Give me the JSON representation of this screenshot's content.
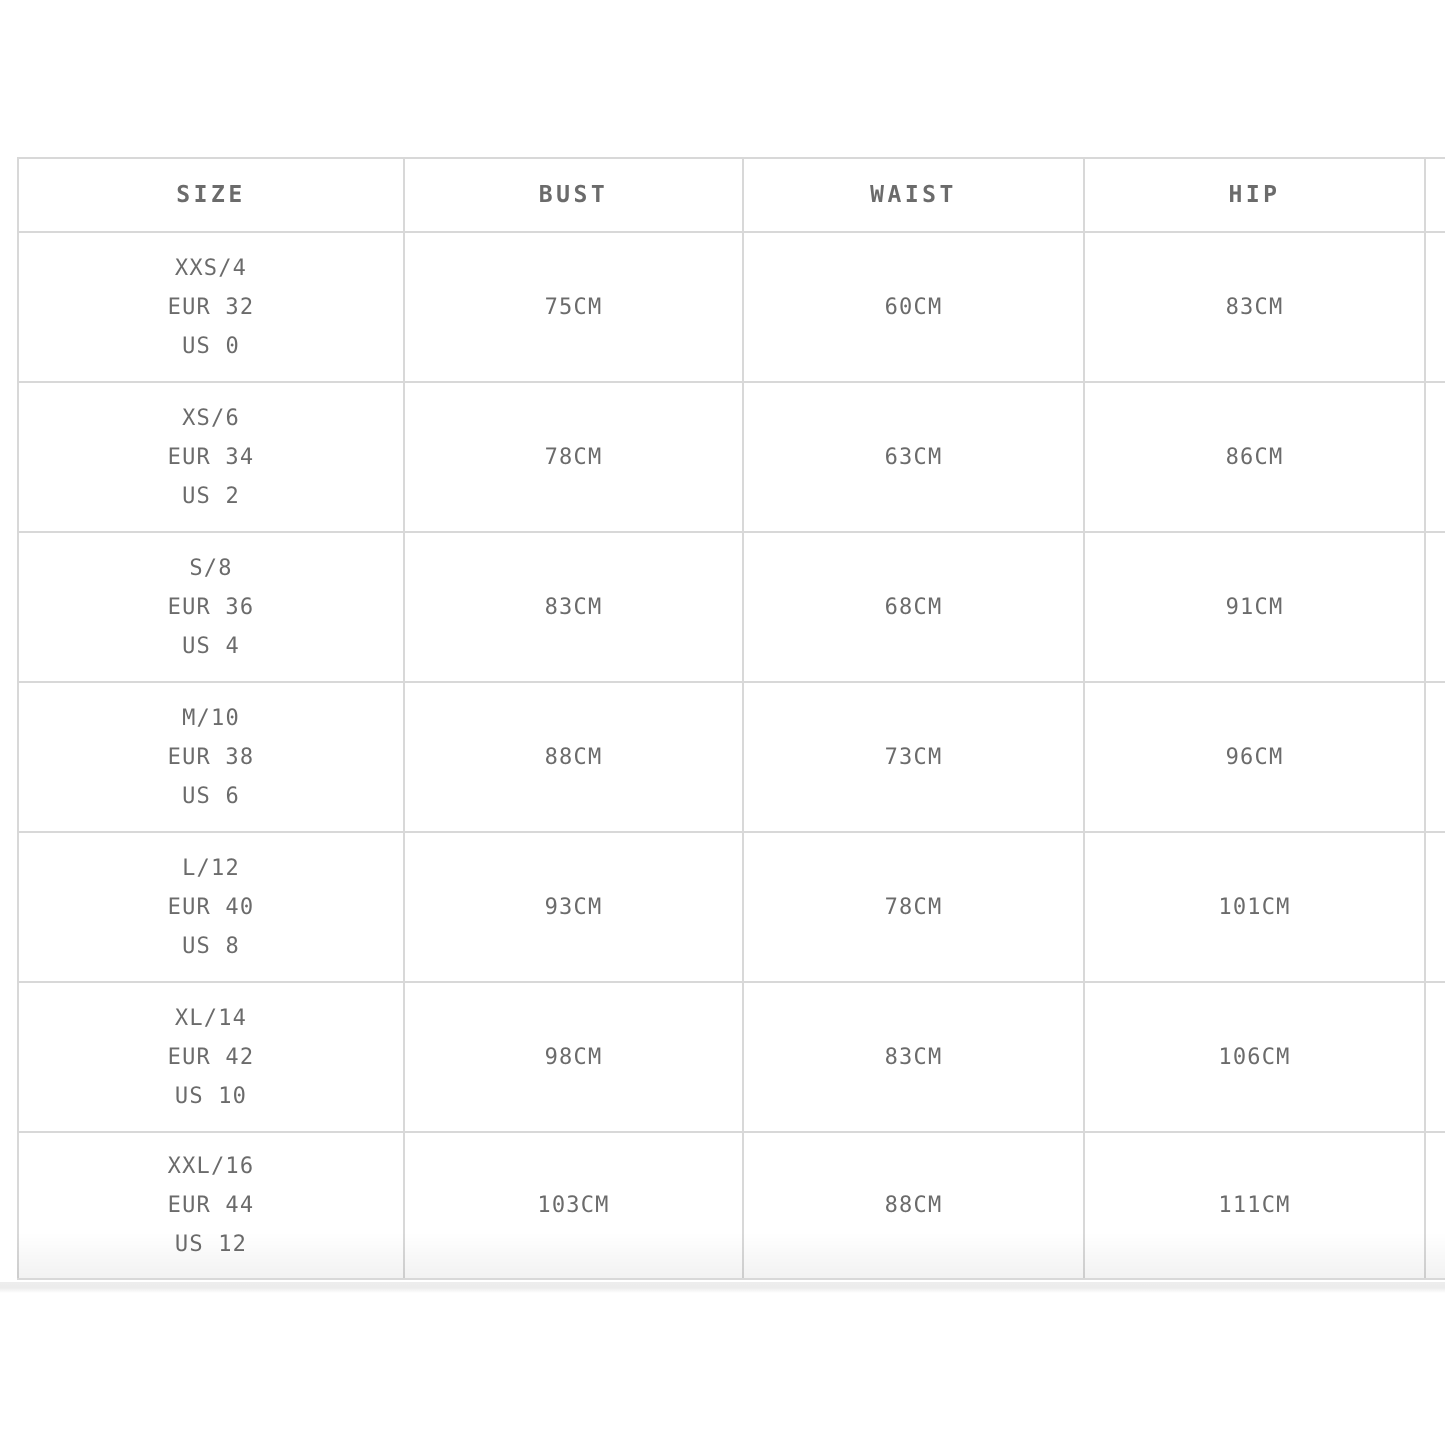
{
  "colors": {
    "text": "#6b6b6b",
    "border": "#d8d8d8",
    "divider": "#ececec"
  },
  "table": {
    "columns": [
      {
        "label": "SIZE"
      },
      {
        "label": "BUST"
      },
      {
        "label": "WAIST"
      },
      {
        "label": "HIP"
      }
    ],
    "rows": [
      {
        "size_lines": [
          "XXS/4",
          "EUR 32",
          "US 0"
        ],
        "bust": "75CM",
        "waist": "60CM",
        "hip": "83CM"
      },
      {
        "size_lines": [
          "XS/6",
          "EUR 34",
          "US 2"
        ],
        "bust": "78CM",
        "waist": "63CM",
        "hip": "86CM"
      },
      {
        "size_lines": [
          "S/8",
          "EUR 36",
          "US 4"
        ],
        "bust": "83CM",
        "waist": "68CM",
        "hip": "91CM"
      },
      {
        "size_lines": [
          "M/10",
          "EUR 38",
          "US 6"
        ],
        "bust": "88CM",
        "waist": "73CM",
        "hip": "96CM"
      },
      {
        "size_lines": [
          "L/12",
          "EUR 40",
          "US 8"
        ],
        "bust": "93CM",
        "waist": "78CM",
        "hip": "101CM"
      },
      {
        "size_lines": [
          "XL/14",
          "EUR 42",
          "US 10"
        ],
        "bust": "98CM",
        "waist": "83CM",
        "hip": "106CM"
      },
      {
        "size_lines": [
          "XXL/16",
          "EUR 44",
          "US 12"
        ],
        "bust": "103CM",
        "waist": "88CM",
        "hip": "111CM"
      }
    ]
  }
}
